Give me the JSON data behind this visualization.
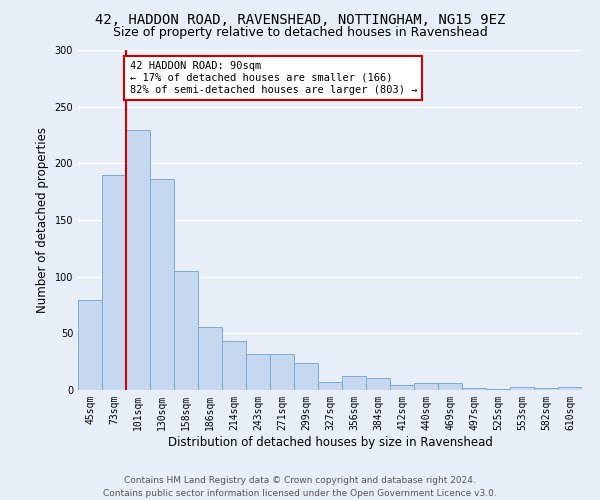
{
  "title_line1": "42, HADDON ROAD, RAVENSHEAD, NOTTINGHAM, NG15 9EZ",
  "title_line2": "Size of property relative to detached houses in Ravenshead",
  "xlabel": "Distribution of detached houses by size in Ravenshead",
  "ylabel": "Number of detached properties",
  "categories": [
    "45sqm",
    "73sqm",
    "101sqm",
    "130sqm",
    "158sqm",
    "186sqm",
    "214sqm",
    "243sqm",
    "271sqm",
    "299sqm",
    "327sqm",
    "356sqm",
    "384sqm",
    "412sqm",
    "440sqm",
    "469sqm",
    "497sqm",
    "525sqm",
    "553sqm",
    "582sqm",
    "610sqm"
  ],
  "values": [
    79,
    190,
    229,
    186,
    105,
    56,
    43,
    32,
    32,
    24,
    7,
    12,
    11,
    4,
    6,
    6,
    2,
    1,
    3,
    2,
    3
  ],
  "bar_color": "#c5d8f0",
  "bar_edge_color": "#7aadd4",
  "vline_x": 1.5,
  "vline_color": "#cc0000",
  "annotation_text": "42 HADDON ROAD: 90sqm\n← 17% of detached houses are smaller (166)\n82% of semi-detached houses are larger (803) →",
  "annotation_box_color": "#ffffff",
  "annotation_box_edge_color": "#cc0000",
  "ylim": [
    0,
    300
  ],
  "yticks": [
    0,
    50,
    100,
    150,
    200,
    250,
    300
  ],
  "footer_line1": "Contains HM Land Registry data © Crown copyright and database right 2024.",
  "footer_line2": "Contains public sector information licensed under the Open Government Licence v3.0.",
  "background_color": "#e8eef7",
  "plot_background_color": "#e8eef7",
  "grid_color": "#ffffff",
  "title_fontsize": 10,
  "subtitle_fontsize": 9,
  "axis_label_fontsize": 8.5,
  "tick_fontsize": 7,
  "footer_fontsize": 6.5,
  "annot_fontsize": 7.5
}
